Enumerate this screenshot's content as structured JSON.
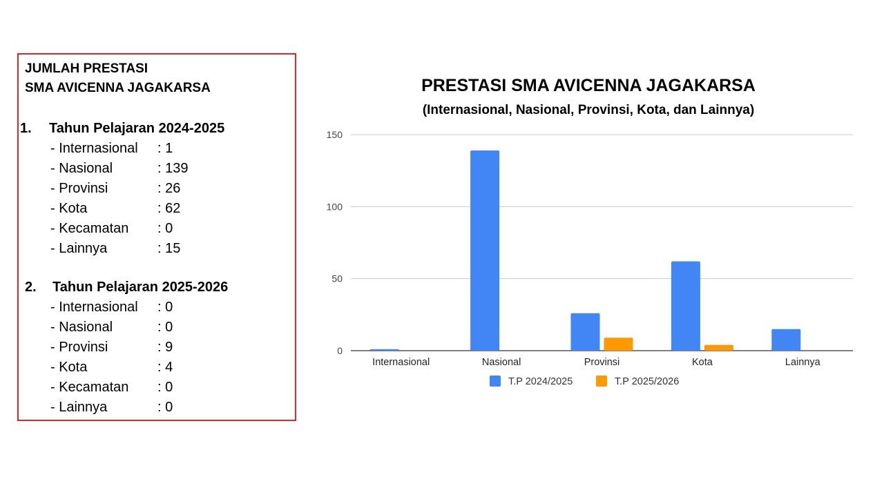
{
  "panel": {
    "heading_line1": "JUMLAH PRESTASI",
    "heading_line2": "SMA AVICENNA JAGAKARSA",
    "years": [
      {
        "number": "1.",
        "title": "Tahun Pelajaran 2024-2025",
        "items": [
          {
            "label": "- Internasional",
            "value": ": 1"
          },
          {
            "label": "- Nasional",
            "value": ": 139"
          },
          {
            "label": "- Provinsi",
            "value": ": 26"
          },
          {
            "label": "- Kota",
            "value": ": 62"
          },
          {
            "label": "- Kecamatan",
            "value": ": 0"
          },
          {
            "label": "- Lainnya",
            "value": ": 15"
          }
        ]
      },
      {
        "number": "2.",
        "title": "Tahun Pelajaran 2025-2026",
        "items": [
          {
            "label": "- Internasional",
            "value": ": 0"
          },
          {
            "label": "- Nasional",
            "value": ": 0"
          },
          {
            "label": "- Provinsi",
            "value": ": 9"
          },
          {
            "label": "- Kota",
            "value": ": 4"
          },
          {
            "label": "- Kecamatan",
            "value": ": 0"
          },
          {
            "label": "- Lainnya",
            "value": ": 0"
          }
        ]
      }
    ]
  },
  "chart_data": {
    "type": "bar",
    "title": "PRESTASI SMA AVICENNA JAGAKARSA",
    "subtitle": "(Internasional, Nasional, Provinsi, Kota, dan Lainnya)",
    "categories": [
      "Internasional",
      "Nasional",
      "Provinsi",
      "Kota",
      "Lainnya"
    ],
    "series": [
      {
        "name": "T.P 2024/2025",
        "values": [
          1,
          139,
          26,
          62,
          15
        ],
        "color": "#4285f4"
      },
      {
        "name": "T.P 2025/2026",
        "values": [
          0,
          0,
          9,
          4,
          0
        ],
        "color": "#ff9900"
      }
    ],
    "ylim": [
      0,
      150
    ],
    "yticks": [
      0,
      50,
      100,
      150
    ],
    "grid": true,
    "legend": "bottom",
    "colors": {
      "border": "#e0262a",
      "gridline": "#cccccc",
      "axis": "#333333"
    }
  }
}
